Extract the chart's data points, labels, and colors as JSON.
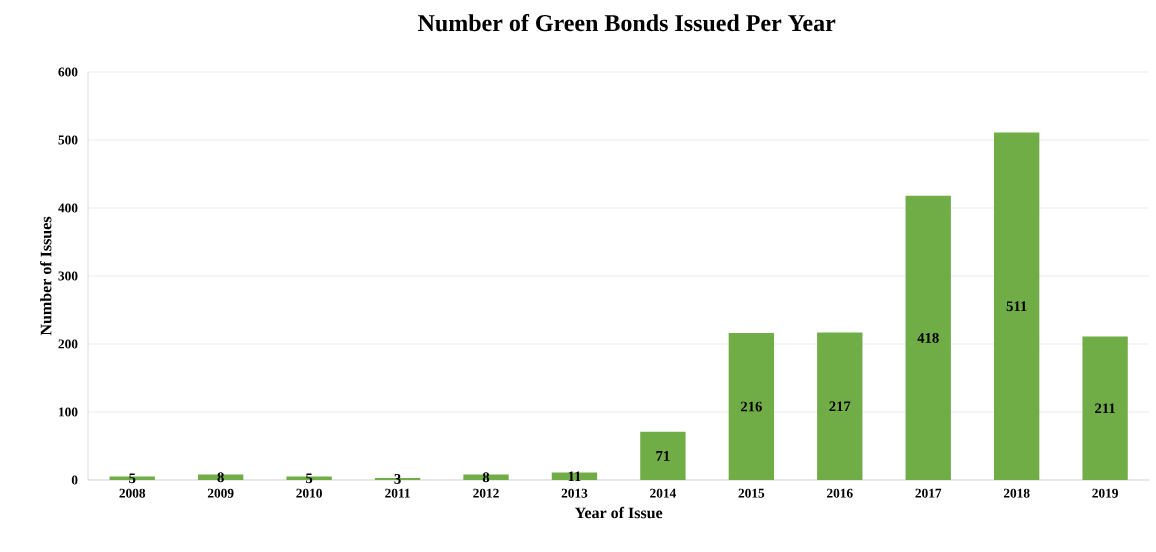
{
  "chart_data": {
    "type": "bar",
    "title": "Number of Green Bonds Issued Per Year",
    "xlabel": "Year of Issue",
    "ylabel": "Number  of Issues",
    "categories": [
      "2008",
      "2009",
      "2010",
      "2011",
      "2012",
      "2013",
      "2014",
      "2015",
      "2016",
      "2017",
      "2018",
      "2019"
    ],
    "values": [
      5,
      8,
      5,
      3,
      8,
      11,
      71,
      216,
      217,
      418,
      511,
      211
    ],
    "color": "#70ad47",
    "ylim": [
      0,
      600
    ],
    "yticks": [
      0,
      100,
      200,
      300,
      400,
      500,
      600
    ],
    "grid": "y",
    "data_labels": true
  }
}
